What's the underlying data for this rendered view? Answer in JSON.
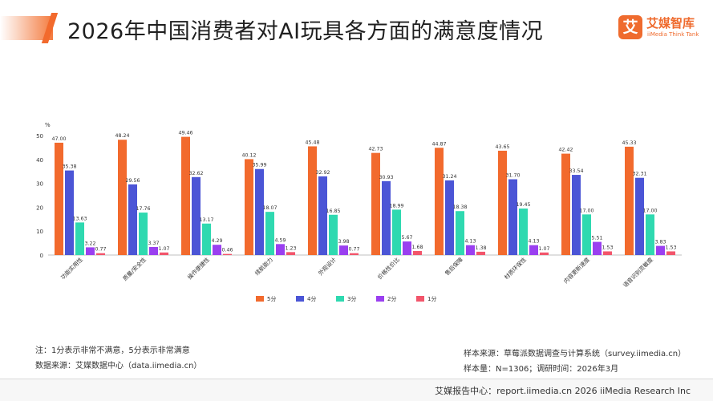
{
  "header": {
    "title": "2026年中国消费者对AI玩具各方面的满意度情况"
  },
  "logo": {
    "mark": "艾",
    "name_cn": "艾媒智库",
    "name_en": "iiMedia Think Tank"
  },
  "chart_data": {
    "type": "bar",
    "unit_label": "%",
    "ylim": [
      0,
      50
    ],
    "yticks": [
      0,
      10,
      20,
      30,
      40,
      50
    ],
    "categories": [
      "功能实用性",
      "质量/安全性",
      "操作便捷性",
      "续航能力",
      "外观设计",
      "价格性价比",
      "售后保障",
      "材质环保性",
      "内容更新速度",
      "语音识别灵敏度"
    ],
    "series": [
      {
        "name": "5分",
        "color": "#f26a2d",
        "values": [
          47.0,
          48.24,
          49.46,
          40.12,
          45.48,
          42.73,
          44.87,
          43.65,
          42.42,
          45.33
        ]
      },
      {
        "name": "4分",
        "color": "#4b55d6",
        "values": [
          35.38,
          29.56,
          32.62,
          35.99,
          32.92,
          30.93,
          31.24,
          31.7,
          33.54,
          32.31
        ]
      },
      {
        "name": "3分",
        "color": "#2fd9b0",
        "values": [
          13.63,
          17.76,
          13.17,
          18.07,
          16.85,
          18.99,
          18.38,
          19.45,
          17.0,
          17.0
        ]
      },
      {
        "name": "2分",
        "color": "#9a3ff0",
        "values": [
          3.22,
          3.37,
          4.29,
          4.59,
          3.98,
          5.67,
          4.13,
          4.13,
          5.51,
          3.83
        ]
      },
      {
        "name": "1分",
        "color": "#f2556b",
        "values": [
          0.77,
          1.07,
          0.46,
          1.23,
          0.77,
          1.68,
          1.38,
          1.07,
          1.53,
          1.53
        ]
      }
    ],
    "legend_position": "bottom-center",
    "grid": false
  },
  "notes": {
    "note": "注：1分表示非常不满意，5分表示非常满意",
    "data_source": "数据来源：艾媒数据中心（data.iimedia.cn）",
    "sample_source": "样本来源：草莓派数据调查与计算系统（survey.iimedia.cn）",
    "sample_info": "样本量：N=1306；调研时间：2026年3月"
  },
  "footer": {
    "text": "艾媒报告中心：report.iimedia.cn  2026 iiMedia Research Inc"
  }
}
